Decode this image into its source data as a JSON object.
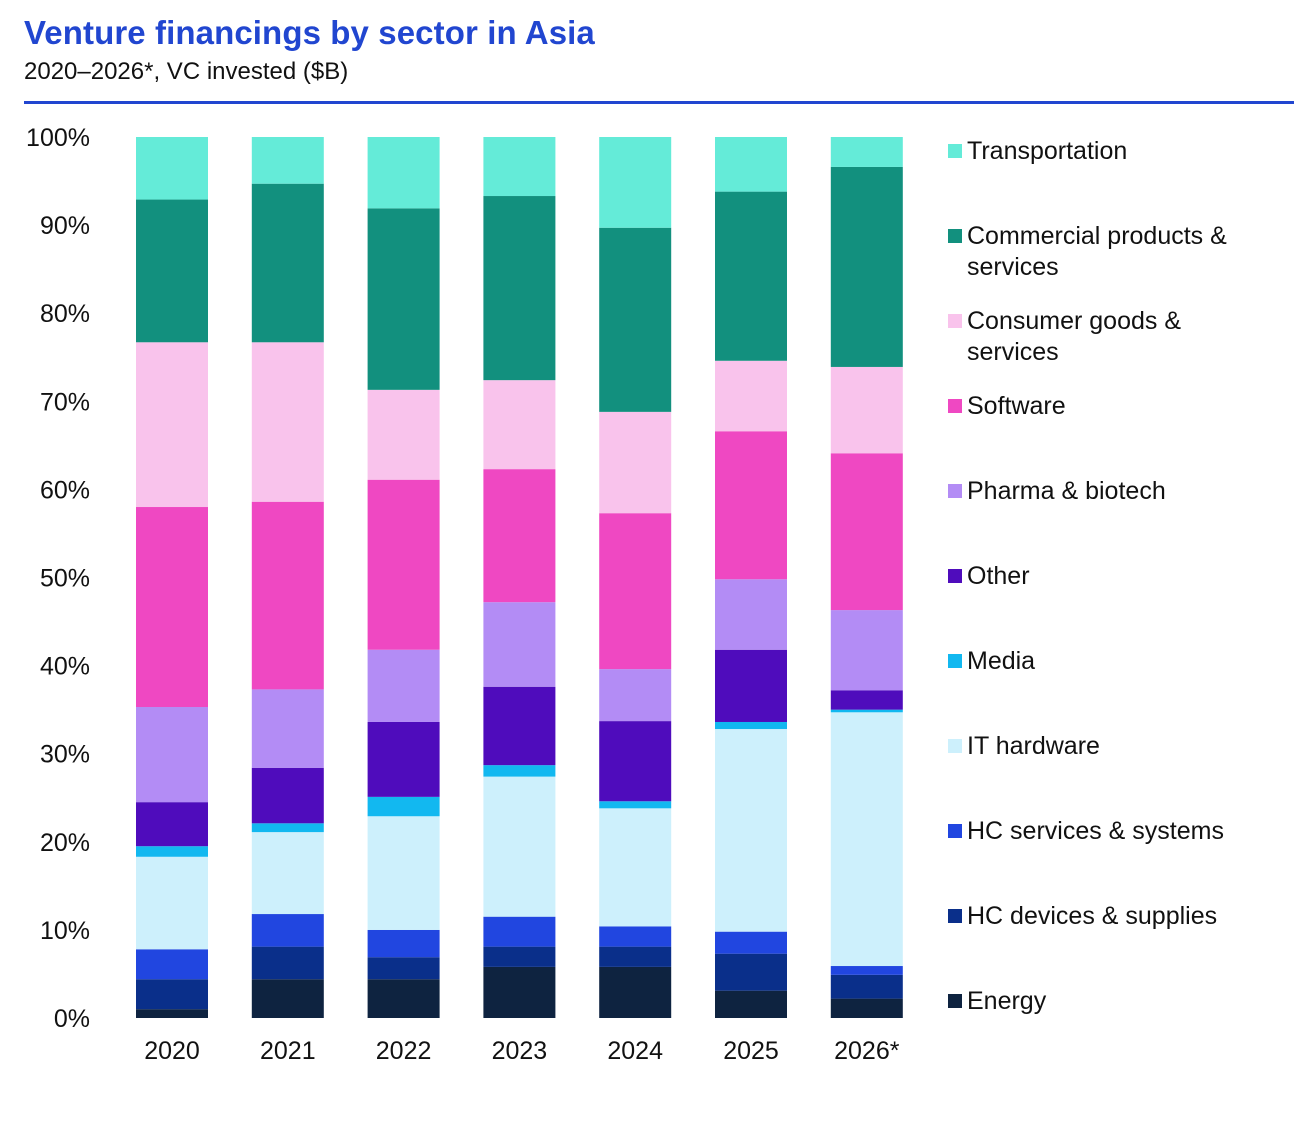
{
  "header": {
    "title": "Venture financings by sector in Asia",
    "subtitle": "2020–2026*, VC invested ($B)"
  },
  "chart_data": {
    "type": "bar",
    "stacked": true,
    "normalized": true,
    "title": "Venture financings by sector in Asia",
    "subtitle": "2020–2026*, VC invested ($B)",
    "xlabel": "",
    "ylabel": "",
    "ylim": [
      0,
      100
    ],
    "y_ticks": [
      "0%",
      "10%",
      "20%",
      "30%",
      "40%",
      "50%",
      "60%",
      "70%",
      "80%",
      "90%",
      "100%"
    ],
    "grid": false,
    "legend_position": "right",
    "categories": [
      "2020",
      "2021",
      "2022",
      "2023",
      "2024",
      "2025",
      "2026*"
    ],
    "series": [
      {
        "name": "Energy",
        "color": "#0e2340",
        "values": [
          1.0,
          4.4,
          4.4,
          5.8,
          5.8,
          3.1,
          2.2
        ]
      },
      {
        "name": "HC devices & supplies",
        "color": "#0a2f8a",
        "values": [
          3.4,
          3.7,
          2.5,
          2.3,
          2.3,
          4.2,
          2.7
        ]
      },
      {
        "name": "HC services & systems",
        "color": "#2146e0",
        "values": [
          3.4,
          3.7,
          3.1,
          3.4,
          2.3,
          2.5,
          1.0
        ]
      },
      {
        "name": "IT hardware",
        "color": "#cdf0fc",
        "values": [
          10.5,
          9.3,
          12.9,
          15.9,
          13.4,
          23.0,
          28.8
        ]
      },
      {
        "name": "Media",
        "color": "#12b8f0",
        "values": [
          1.2,
          1.0,
          2.2,
          1.3,
          0.8,
          0.8,
          0.3
        ]
      },
      {
        "name": "Other",
        "color": "#4f0cbc",
        "values": [
          5.0,
          6.3,
          8.5,
          8.9,
          9.1,
          8.2,
          2.2
        ]
      },
      {
        "name": "Pharma & biotech",
        "color": "#b38cf5",
        "values": [
          10.8,
          8.9,
          8.2,
          9.6,
          5.9,
          8.0,
          9.1
        ]
      },
      {
        "name": "Software",
        "color": "#ef48c2",
        "values": [
          22.7,
          21.3,
          19.3,
          15.1,
          17.7,
          16.8,
          17.8
        ]
      },
      {
        "name": "Consumer goods & services",
        "color": "#f9c3ec",
        "values": [
          18.7,
          18.1,
          10.2,
          10.1,
          11.5,
          8.0,
          9.8
        ]
      },
      {
        "name": "Commercial products & services",
        "color": "#12907e",
        "values": [
          16.2,
          18.0,
          20.6,
          20.9,
          20.9,
          19.2,
          22.7
        ]
      },
      {
        "name": "Transportation",
        "color": "#64ebd8",
        "values": [
          7.1,
          5.3,
          8.1,
          6.7,
          10.3,
          6.2,
          3.4
        ]
      }
    ]
  },
  "legend": {
    "items": [
      {
        "label": "Transportation",
        "color": "#64ebd8"
      },
      {
        "label": "Commercial products & services",
        "color": "#12907e"
      },
      {
        "label": "Consumer goods & services",
        "color": "#f9c3ec"
      },
      {
        "label": "Software",
        "color": "#ef48c2"
      },
      {
        "label": "Pharma & biotech",
        "color": "#b38cf5"
      },
      {
        "label": "Other",
        "color": "#4f0cbc"
      },
      {
        "label": "Media",
        "color": "#12b8f0"
      },
      {
        "label": "IT hardware",
        "color": "#cdf0fc"
      },
      {
        "label": "HC services & systems",
        "color": "#2146e0"
      },
      {
        "label": "HC devices & supplies",
        "color": "#0a2f8a"
      },
      {
        "label": "Energy",
        "color": "#0e2340"
      }
    ]
  }
}
